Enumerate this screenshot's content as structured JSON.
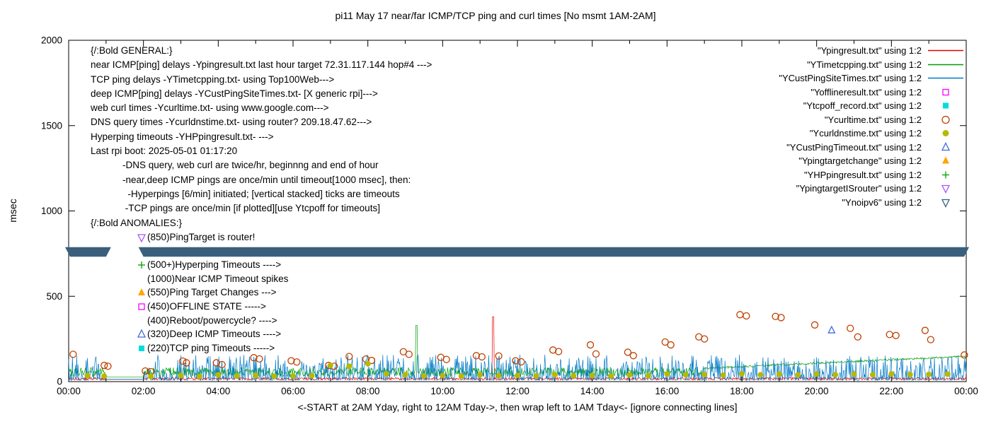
{
  "title": "pi11 May 17  near/far ICMP/TCP ping and curl times [No msmt 1AM-2AM]",
  "y_axis": {
    "label": "msec",
    "ticks": [
      0,
      500,
      1000,
      1500,
      2000
    ],
    "range": [
      0,
      2000
    ]
  },
  "x_axis": {
    "tick_labels": [
      "00:00",
      "02:00",
      "04:00",
      "06:00",
      "08:00",
      "10:00",
      "12:00",
      "14:00",
      "16:00",
      "18:00",
      "20:00",
      "22:00",
      "00:00"
    ],
    "caption": "<-START at 2AM Yday, right to 12AM Tday->, then wrap left to 1AM Tday<- [ignore connecting lines]",
    "range_hours": [
      0,
      24
    ]
  },
  "legend": [
    {
      "label": "\"Ypingresult.txt\" using 1:2",
      "marker": "line",
      "color": "#e60000"
    },
    {
      "label": "\"YTimetcpping.txt\" using 1:2",
      "marker": "line",
      "color": "#00a000"
    },
    {
      "label": "\"YCustPingSiteTimes.txt\" using 1:2",
      "marker": "line",
      "color": "#0079c8"
    },
    {
      "label": "\"Yofflineresult.txt\" using 1:2",
      "marker": "square-open",
      "color": "#ff00ff"
    },
    {
      "label": "\"Ytcpoff_record.txt\" using 1:2",
      "marker": "square-filled",
      "color": "#00dcdc"
    },
    {
      "label": "\"Ycurltime.txt\" using 1:2",
      "marker": "circle-open",
      "color": "#c04000"
    },
    {
      "label": "\"Ycurldnstime.txt\" using 1:2",
      "marker": "circle-filled",
      "color": "#b8b800"
    },
    {
      "label": "\"YCustPingTimeout.txt\" using 1:2",
      "marker": "triangle-up-open",
      "color": "#4169e1"
    },
    {
      "label": "\"Ypingtargetchange\" using 1:2",
      "marker": "triangle-up-filled",
      "color": "#ffa500"
    },
    {
      "label": "\"YHPpingresult.txt\" using 1:2",
      "marker": "plus",
      "color": "#00a000"
    },
    {
      "label": "\"YpingtargetISrouter\" using 1:2",
      "marker": "triangle-down-open",
      "color": "#aa55ff"
    },
    {
      "label": "\"Ynoipv6\" using 1:2",
      "marker": "triangle-down-open",
      "color": "#3a5f7d"
    }
  ],
  "annotations": {
    "general": [
      "{/:Bold GENERAL:}",
      "near ICMP[ping] delays -Ypingresult.txt last hour target 72.31.117.144 hop#4 --->",
      "TCP ping delays -YTimetcpping.txt- using Top100Web--->",
      "deep ICMP[ping] delays -YCustPingSiteTimes.txt- [X generic rpi]--->",
      "web curl times -Ycurltime.txt- using www.google.com--->",
      "DNS query times -Ycurldnstime.txt- using router? 209.18.47.62--->",
      "Hyperping timeouts -YHPpingresult.txt- --->",
      "Last rpi boot: 2025-05-01 01:17:20",
      "            -DNS query, web curl are twice/hr, beginnng and end of hour",
      "            -near,deep ICMP pings are once/min until timeout[1000 msec], then:",
      "              -Hyperpings [6/min] initiated; [vertical stacked] ticks are timeouts",
      "             -TCP pings are once/min [if plotted][use Ytcpoff for timeouts]"
    ],
    "anomalies_title": "{/:Bold ANOMALIES:}",
    "anomalies": [
      {
        "marker": "triangle-down-open",
        "color": "#aa55ff",
        "text": "(850)PingTarget is router!"
      },
      {
        "marker": "none",
        "color": "",
        "text": ""
      },
      {
        "marker": "plus",
        "color": "#00a000",
        "text": "(500+)Hyperping Timeouts ---->"
      },
      {
        "marker": "none",
        "color": "",
        "text": "(1000)Near ICMP Timeout spikes"
      },
      {
        "marker": "triangle-up-filled",
        "color": "#ffa500",
        "text": "(550)Ping Target Changes --->"
      },
      {
        "marker": "square-open",
        "color": "#ff00ff",
        "text": "(450)OFFLINE STATE ----->"
      },
      {
        "marker": "none",
        "color": "",
        "text": "(400)Reboot/powercycle? ---->"
      },
      {
        "marker": "triangle-up-open",
        "color": "#4169e1",
        "text": "(320)Deep ICMP Timeouts ---->"
      },
      {
        "marker": "square-filled",
        "color": "#00dcdc",
        "text": "(220)TCP ping Timeouts ----->"
      }
    ]
  },
  "chart_data": {
    "type": "mixed",
    "x_unit": "hours",
    "xlim": [
      0,
      24
    ],
    "ylim": [
      0,
      2000
    ],
    "no_measurement_window_hours": [
      1,
      2
    ],
    "series": [
      {
        "name": "Ypingresult.txt",
        "kind": "noisy-line",
        "color": "#e60000",
        "base": 9,
        "noise": 16,
        "noise_exp": 1,
        "flat_value": 13,
        "spikes": [
          [
            11.35,
            380
          ]
        ]
      },
      {
        "name": "YTimetcpping.txt",
        "kind": "noisy-line",
        "color": "#00a000",
        "base": 28,
        "noise": 55,
        "noise_exp": 1,
        "flat_value": 26,
        "trend": {
          "start_hour": 17,
          "start_value": 78,
          "end_value": 148,
          "jitter": 12
        },
        "spikes": [
          [
            9.3,
            330
          ]
        ]
      },
      {
        "name": "YCustPingSiteTimes.txt",
        "kind": "noisy-line",
        "color": "#0079c8",
        "base": 8,
        "noise": 150,
        "noise_exp": 2.4,
        "flat_value": 14,
        "spikes": []
      },
      {
        "name": "Ycurltime.txt",
        "kind": "scatter",
        "marker": "circle-open",
        "color": "#c04000",
        "points": [
          [
            0.12,
            160
          ],
          [
            0.95,
            95
          ],
          [
            1.05,
            90
          ],
          [
            2.05,
            62
          ],
          [
            2.2,
            58
          ],
          [
            3.05,
            120
          ],
          [
            3.15,
            110
          ],
          [
            3.95,
            110
          ],
          [
            4.1,
            100
          ],
          [
            4.95,
            140
          ],
          [
            5.1,
            133
          ],
          [
            5.95,
            122
          ],
          [
            6.1,
            115
          ],
          [
            6.95,
            95
          ],
          [
            7.1,
            90
          ],
          [
            7.5,
            147
          ],
          [
            7.95,
            132
          ],
          [
            8.1,
            124
          ],
          [
            8.95,
            175
          ],
          [
            9.1,
            160
          ],
          [
            9.95,
            142
          ],
          [
            10.1,
            130
          ],
          [
            10.9,
            152
          ],
          [
            11.05,
            145
          ],
          [
            11.5,
            150
          ],
          [
            11.95,
            122
          ],
          [
            12.1,
            116
          ],
          [
            12.95,
            185
          ],
          [
            13.1,
            176
          ],
          [
            13.95,
            215
          ],
          [
            14.1,
            162
          ],
          [
            14.95,
            172
          ],
          [
            15.1,
            152
          ],
          [
            15.95,
            232
          ],
          [
            16.1,
            215
          ],
          [
            16.85,
            262
          ],
          [
            17.0,
            250
          ],
          [
            17.95,
            392
          ],
          [
            18.12,
            385
          ],
          [
            18.9,
            382
          ],
          [
            19.05,
            375
          ],
          [
            19.95,
            332
          ],
          [
            20.9,
            312
          ],
          [
            21.1,
            262
          ],
          [
            21.95,
            276
          ],
          [
            22.12,
            270
          ],
          [
            22.9,
            300
          ],
          [
            23.05,
            246
          ],
          [
            23.95,
            156
          ]
        ]
      },
      {
        "name": "Ycurldnstime.txt",
        "kind": "scatter",
        "marker": "circle-filled",
        "color": "#b8b800",
        "points": [
          [
            0.5,
            35
          ],
          [
            0.95,
            32
          ],
          [
            2.2,
            30
          ],
          [
            3.0,
            36
          ],
          [
            3.5,
            30
          ],
          [
            4.0,
            40
          ],
          [
            4.5,
            33
          ],
          [
            5.0,
            36
          ],
          [
            5.5,
            31
          ],
          [
            6.0,
            32
          ],
          [
            6.5,
            35
          ],
          [
            7.0,
            95
          ],
          [
            7.5,
            90
          ],
          [
            8.0,
            105
          ],
          [
            8.5,
            45
          ],
          [
            9.0,
            40
          ],
          [
            9.5,
            34
          ],
          [
            10.0,
            36
          ],
          [
            10.5,
            32
          ],
          [
            11.0,
            40
          ],
          [
            11.5,
            35
          ],
          [
            12.0,
            36
          ],
          [
            12.5,
            33
          ],
          [
            13.0,
            40
          ],
          [
            13.5,
            34
          ],
          [
            14.0,
            36
          ],
          [
            14.5,
            33
          ],
          [
            15.0,
            40
          ],
          [
            15.5,
            34
          ],
          [
            16.0,
            45
          ],
          [
            16.5,
            40
          ],
          [
            17.0,
            41
          ],
          [
            17.5,
            38
          ],
          [
            18.0,
            45
          ],
          [
            18.5,
            40
          ],
          [
            19.0,
            44
          ],
          [
            19.5,
            40
          ],
          [
            20.0,
            45
          ],
          [
            20.5,
            40
          ],
          [
            21.0,
            44
          ],
          [
            21.5,
            40
          ],
          [
            22.0,
            45
          ],
          [
            22.5,
            41
          ],
          [
            23.0,
            42
          ],
          [
            23.5,
            44
          ]
        ]
      },
      {
        "name": "YCustPingTimeout.txt",
        "kind": "scatter",
        "marker": "triangle-up-open",
        "color": "#4169e1",
        "points": [
          [
            20.4,
            300
          ]
        ]
      },
      {
        "name": "Ynoipv6",
        "kind": "marker-band",
        "color": "#3a5f7d",
        "y_center": 760,
        "y_half": 28,
        "segments": [
          [
            0,
            1
          ],
          [
            2,
            24
          ]
        ]
      }
    ]
  }
}
